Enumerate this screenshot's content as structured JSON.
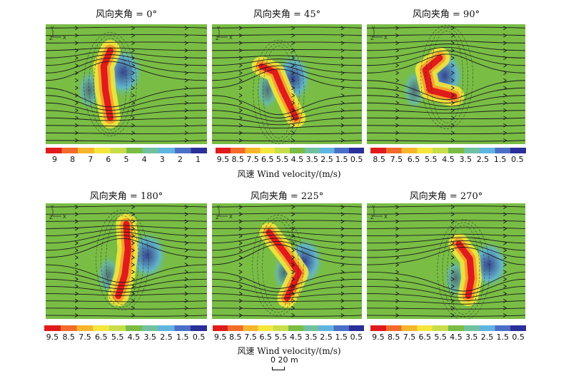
{
  "colors": {
    "field": "#79bd45",
    "high": "#e01b1b",
    "mid": "#f5e63b",
    "low": "#2a2f9a",
    "streamline": "#1a1a1a"
  },
  "panels": [
    {
      "title": "风向夹角 = 0°",
      "angle": 0,
      "axis_labels": {
        "y": "Y",
        "z": "Z",
        "x": "X"
      }
    },
    {
      "title": "风向夹角 = 45°",
      "angle": 45,
      "axis_labels": {
        "y": "Y",
        "z": "Z",
        "x": "X"
      }
    },
    {
      "title": "风向夹角 = 90°",
      "angle": 90,
      "axis_labels": {
        "y": "Y",
        "z": "Z",
        "x": "X"
      }
    },
    {
      "title": "风向夹角 = 180°",
      "angle": 180,
      "axis_labels": {
        "y": "Y",
        "z": "Z",
        "x": "X"
      }
    },
    {
      "title": "风向夹角 = 225°",
      "angle": 225,
      "axis_labels": {
        "y": "Y",
        "z": "Z",
        "x": "X"
      }
    },
    {
      "title": "风向夹角 = 270°",
      "angle": 270,
      "axis_labels": {
        "y": "Y",
        "z": "Z",
        "x": "X"
      }
    }
  ],
  "colorbars": [
    {
      "ticks": [
        "9",
        "8",
        "7",
        "6",
        "5",
        "4",
        "3",
        "2",
        "1"
      ]
    },
    {
      "ticks": [
        "9.5",
        "8.5",
        "7.5",
        "6.5",
        "5.5",
        "4.5",
        "3.5",
        "2.5",
        "1.5",
        "0.5"
      ]
    },
    {
      "ticks": [
        "8.5",
        "7.5",
        "6.5",
        "5.5",
        "4.5",
        "3.5",
        "2.5",
        "1.5",
        "0.5"
      ]
    },
    {
      "ticks": [
        "9.5",
        "8.5",
        "7.5",
        "6.5",
        "5.5",
        "4.5",
        "3.5",
        "2.5",
        "1.5",
        "0.5"
      ]
    },
    {
      "ticks": [
        "9.5",
        "8.5",
        "7.5",
        "6.5",
        "5.5",
        "4.5",
        "3.5",
        "2.5",
        "1.5",
        "0.5"
      ]
    },
    {
      "ticks": [
        "9.5",
        "8.5",
        "7.5",
        "6.5",
        "5.5",
        "4.5",
        "3.5",
        "2.5",
        "1.5",
        "0.5"
      ]
    }
  ],
  "colorbar_label": "风速 Wind velocity/(m/s)",
  "scale_bar": "0 20 m"
}
